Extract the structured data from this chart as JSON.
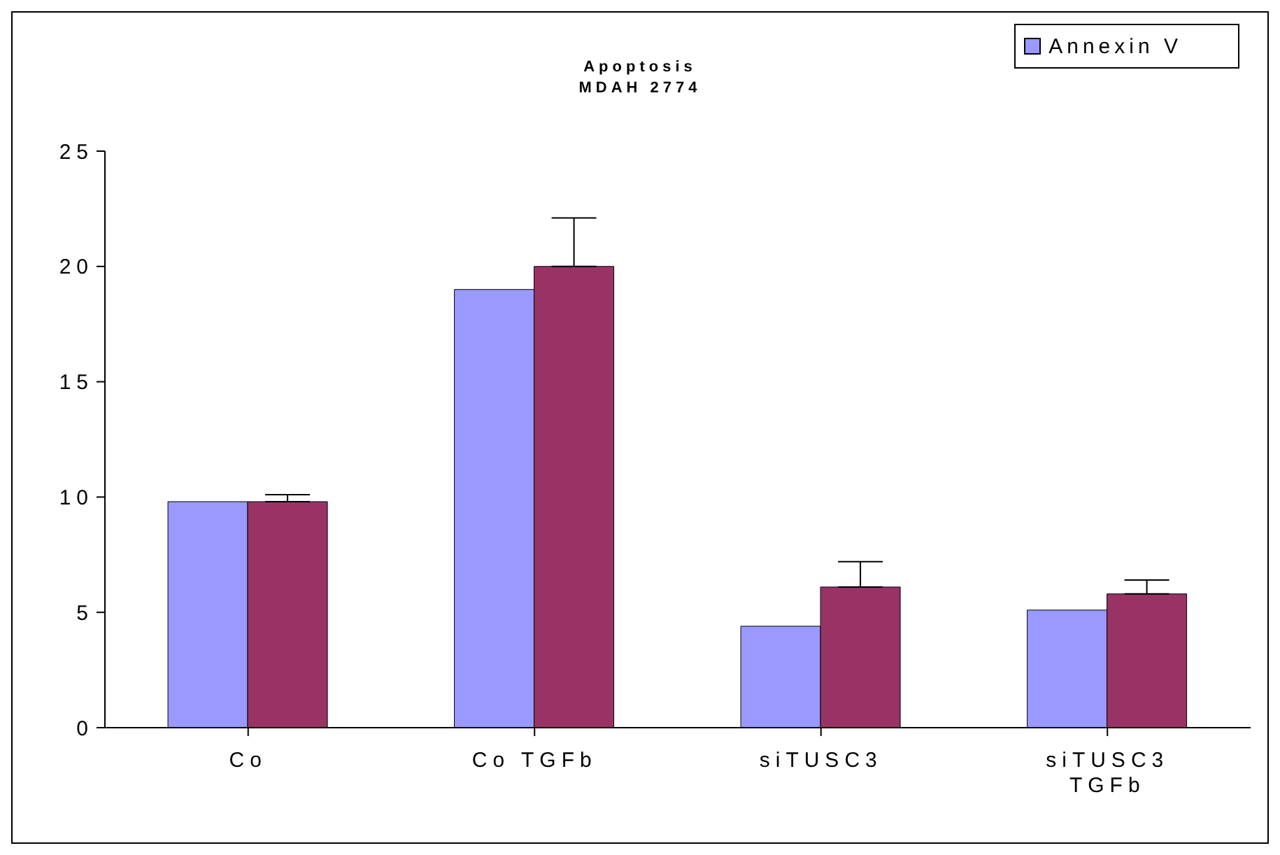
{
  "chart_data": {
    "type": "bar",
    "title": "Apoptosis",
    "subtitle": "MDAH 2774",
    "categories": [
      "Co",
      "Co TGFb",
      "siTUSC3",
      "siTUSC3 TGFb"
    ],
    "series": [
      {
        "name": "Annexin V",
        "color": "#9999ff",
        "values": [
          9.8,
          19,
          4.4,
          5.1
        ]
      },
      {
        "color": "#993366",
        "values": [
          9.8,
          20,
          6.1,
          5.8
        ],
        "errors": [
          [
            9.8,
            10.1
          ],
          [
            20,
            22.1
          ],
          [
            6.1,
            7.2
          ],
          [
            5.8,
            6.4
          ]
        ]
      }
    ],
    "ylim": [
      0,
      25
    ],
    "yticks": [
      0,
      5,
      10,
      15,
      20,
      25
    ],
    "grid": false,
    "legend": "top right"
  }
}
